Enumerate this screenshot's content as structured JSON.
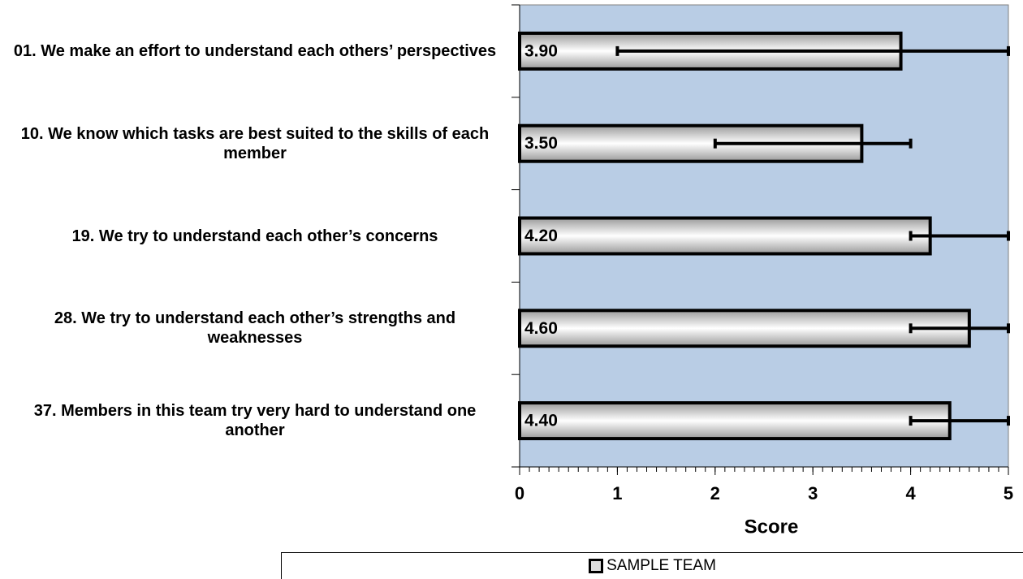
{
  "chart_data": {
    "type": "bar",
    "orientation": "horizontal",
    "xlabel": "Score",
    "categories": [
      "01. We make an effort to understand each others’ perspectives",
      "10. We know which tasks are best suited to the skills of each member",
      "19. We try to understand each other’s concerns",
      "28. We try to understand each other’s strengths and weaknesses",
      "37. Members in this team try very hard to understand one another"
    ],
    "series": [
      {
        "name": "SAMPLE TEAM",
        "color": "#d9d9d9",
        "values": [
          3.9,
          3.5,
          4.2,
          4.6,
          4.4
        ],
        "value_labels": [
          "3.90",
          "3.50",
          "4.20",
          "4.60",
          "4.40"
        ],
        "min": [
          1,
          2,
          4,
          4,
          4
        ],
        "max": [
          5,
          4,
          5,
          5,
          5
        ]
      }
    ],
    "xlim": [
      0,
      5
    ],
    "xticks": [
      0,
      1,
      2,
      3,
      4,
      5
    ],
    "minor_tick_step": 0.1,
    "plot_background": "#b9cde5",
    "legend": "bottom"
  }
}
